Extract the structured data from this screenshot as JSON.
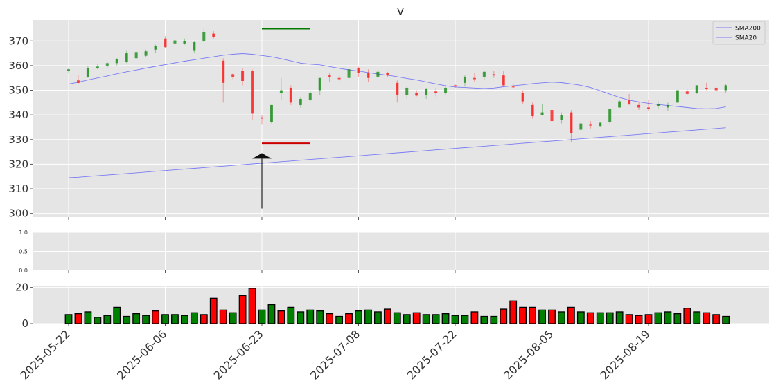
{
  "chart_data": {
    "type": "candlestick",
    "title": "V",
    "dates": [
      "2025-05-22",
      "2025-05-23",
      "2025-05-27",
      "2025-05-28",
      "2025-05-29",
      "2025-05-30",
      "2025-06-02",
      "2025-06-03",
      "2025-06-04",
      "2025-06-05",
      "2025-06-06",
      "2025-06-09",
      "2025-06-10",
      "2025-06-11",
      "2025-06-12",
      "2025-06-13",
      "2025-06-16",
      "2025-06-17",
      "2025-06-18",
      "2025-06-20",
      "2025-06-23",
      "2025-06-24",
      "2025-06-25",
      "2025-06-26",
      "2025-06-27",
      "2025-06-30",
      "2025-07-01",
      "2025-07-02",
      "2025-07-03",
      "2025-07-07",
      "2025-07-08",
      "2025-07-09",
      "2025-07-10",
      "2025-07-11",
      "2025-07-14",
      "2025-07-15",
      "2025-07-16",
      "2025-07-17",
      "2025-07-18",
      "2025-07-21",
      "2025-07-22",
      "2025-07-23",
      "2025-07-24",
      "2025-07-25",
      "2025-07-28",
      "2025-07-29",
      "2025-07-30",
      "2025-07-31",
      "2025-08-01",
      "2025-08-04",
      "2025-08-05",
      "2025-08-06",
      "2025-08-07",
      "2025-08-08",
      "2025-08-11",
      "2025-08-12",
      "2025-08-13",
      "2025-08-14",
      "2025-08-15",
      "2025-08-18",
      "2025-08-19",
      "2025-08-20",
      "2025-08-21",
      "2025-08-22",
      "2025-08-25",
      "2025-08-26",
      "2025-08-27",
      "2025-08-28",
      "2025-08-29"
    ],
    "ohlc": [
      [
        358.0,
        359.0,
        357.2,
        358.5
      ],
      [
        354.0,
        356.0,
        352.5,
        353.0
      ],
      [
        355.5,
        360.0,
        355.0,
        359.0
      ],
      [
        359.0,
        360.5,
        358.5,
        359.6
      ],
      [
        360.0,
        361.5,
        359.0,
        361.0
      ],
      [
        361.0,
        363.0,
        360.0,
        362.5
      ],
      [
        361.5,
        366.0,
        361.0,
        365.0
      ],
      [
        363.0,
        366.0,
        362.5,
        365.5
      ],
      [
        364.0,
        366.5,
        363.5,
        365.8
      ],
      [
        366.5,
        368.5,
        365.0,
        368.0
      ],
      [
        371.0,
        372.0,
        367.0,
        367.5
      ],
      [
        369.0,
        370.8,
        368.5,
        370.2
      ],
      [
        369.0,
        371.0,
        368.5,
        370.0
      ],
      [
        366.0,
        370.0,
        365.0,
        369.5
      ],
      [
        370.0,
        375.0,
        369.5,
        373.5
      ],
      [
        373.0,
        374.0,
        371.0,
        371.5
      ],
      [
        362.0,
        363.0,
        345.0,
        353.0
      ],
      [
        356.5,
        357.0,
        354.5,
        355.5
      ],
      [
        358.0,
        359.0,
        352.0,
        353.8
      ],
      [
        358.0,
        358.5,
        338.0,
        340.5
      ],
      [
        339.0,
        340.0,
        336.0,
        338.5
      ],
      [
        337.0,
        344.0,
        336.5,
        344.0
      ],
      [
        349.0,
        355.0,
        346.0,
        350.0
      ],
      [
        351.0,
        352.0,
        344.0,
        345.0
      ],
      [
        344.0,
        347.0,
        343.0,
        346.5
      ],
      [
        346.0,
        350.0,
        345.5,
        349.0
      ],
      [
        350.0,
        355.0,
        348.0,
        355.0
      ],
      [
        356.0,
        357.0,
        353.5,
        355.5
      ],
      [
        355.0,
        356.0,
        353.5,
        354.5
      ],
      [
        355.0,
        359.0,
        353.5,
        358.5
      ],
      [
        359.0,
        359.5,
        355.5,
        357.0
      ],
      [
        357.0,
        358.5,
        353.5,
        355.0
      ],
      [
        355.5,
        358.0,
        354.5,
        357.5
      ],
      [
        357.0,
        357.5,
        355.5,
        356.0
      ],
      [
        353.0,
        354.0,
        345.0,
        348.0
      ],
      [
        348.0,
        351.5,
        346.5,
        351.0
      ],
      [
        349.0,
        350.0,
        347.5,
        347.8
      ],
      [
        348.0,
        351.0,
        346.5,
        350.5
      ],
      [
        349.5,
        351.0,
        347.5,
        349.0
      ],
      [
        349.0,
        352.0,
        348.0,
        351.0
      ],
      [
        352.0,
        352.5,
        351.0,
        351.5
      ],
      [
        353.0,
        356.0,
        351.5,
        355.5
      ],
      [
        355.0,
        357.0,
        353.5,
        354.5
      ],
      [
        355.5,
        358.0,
        354.0,
        357.5
      ],
      [
        356.5,
        358.0,
        355.0,
        356.0
      ],
      [
        356.0,
        358.0,
        351.5,
        352.0
      ],
      [
        351.5,
        353.0,
        351.0,
        351.2
      ],
      [
        349.0,
        350.0,
        344.5,
        345.5
      ],
      [
        344.0,
        345.0,
        338.5,
        339.5
      ],
      [
        340.0,
        344.5,
        340.0,
        341.0
      ],
      [
        342.0,
        342.5,
        337.0,
        337.5
      ],
      [
        338.0,
        341.0,
        336.5,
        340.0
      ],
      [
        341.0,
        342.0,
        329.0,
        332.5
      ],
      [
        334.0,
        337.0,
        333.5,
        336.5
      ],
      [
        336.0,
        337.5,
        334.5,
        335.8
      ],
      [
        335.5,
        337.0,
        335.0,
        336.8
      ],
      [
        337.0,
        342.5,
        336.5,
        342.5
      ],
      [
        343.0,
        346.0,
        343.0,
        345.5
      ],
      [
        346.0,
        348.5,
        344.0,
        344.5
      ],
      [
        344.0,
        345.5,
        342.0,
        343.0
      ],
      [
        343.0,
        346.0,
        341.5,
        342.5
      ],
      [
        343.5,
        345.5,
        342.5,
        344.5
      ],
      [
        343.0,
        345.0,
        341.5,
        344.0
      ],
      [
        345.0,
        350.0,
        345.0,
        350.0
      ],
      [
        349.5,
        350.5,
        348.0,
        348.5
      ],
      [
        349.0,
        352.0,
        348.5,
        352.0
      ],
      [
        351.0,
        353.0,
        350.0,
        350.5
      ],
      [
        351.0,
        351.5,
        349.5,
        350.0
      ],
      [
        350.0,
        352.5,
        349.0,
        352.0
      ]
    ],
    "sma200": [
      314.5,
      314.7,
      315.0,
      315.3,
      315.6,
      315.9,
      316.2,
      316.5,
      316.8,
      317.1,
      317.4,
      317.7,
      318.0,
      318.3,
      318.6,
      318.9,
      319.2,
      319.5,
      319.8,
      320.1,
      320.4,
      320.7,
      321.0,
      321.3,
      321.6,
      321.9,
      322.2,
      322.5,
      322.8,
      323.1,
      323.4,
      323.7,
      324.0,
      324.3,
      324.6,
      324.9,
      325.2,
      325.5,
      325.8,
      326.1,
      326.4,
      326.7,
      327.0,
      327.3,
      327.6,
      327.9,
      328.2,
      328.5,
      328.8,
      329.1,
      329.4,
      329.7,
      330.0,
      330.3,
      330.6,
      330.9,
      331.2,
      331.5,
      331.8,
      332.1,
      332.4,
      332.7,
      333.0,
      333.3,
      333.6,
      333.9,
      334.2,
      334.5,
      334.8
    ],
    "sma20": [
      352.5,
      353.3,
      354.2,
      355.0,
      355.8,
      356.7,
      357.5,
      358.2,
      359.0,
      359.7,
      360.4,
      361.1,
      361.8,
      362.4,
      363.0,
      363.6,
      364.2,
      364.6,
      364.9,
      364.6,
      364.1,
      363.6,
      362.8,
      361.9,
      361.0,
      360.6,
      360.3,
      359.6,
      358.9,
      358.3,
      357.8,
      357.2,
      356.6,
      356.1,
      355.5,
      354.8,
      354.2,
      353.4,
      352.6,
      351.8,
      351.3,
      351.1,
      350.9,
      350.7,
      350.9,
      351.4,
      351.8,
      352.2,
      352.7,
      353.0,
      353.3,
      353.1,
      352.6,
      352.0,
      351.1,
      349.8,
      348.4,
      347.1,
      346.0,
      345.3,
      344.7,
      344.2,
      343.8,
      343.4,
      343.0,
      342.6,
      342.5,
      342.6,
      343.3
    ],
    "volume": [
      5.0,
      5.5,
      6.5,
      3.5,
      4.5,
      9.0,
      4.0,
      5.5,
      4.5,
      7.0,
      5.0,
      5.0,
      4.5,
      6.0,
      5.0,
      14.0,
      7.5,
      6.0,
      15.5,
      19.5,
      7.5,
      10.5,
      7.0,
      9.0,
      6.5,
      7.5,
      7.0,
      5.5,
      4.0,
      5.5,
      7.0,
      7.5,
      6.5,
      8.0,
      6.0,
      5.0,
      6.0,
      5.0,
      5.0,
      5.5,
      4.5,
      4.5,
      6.5,
      4.0,
      4.0,
      8.0,
      12.5,
      9.0,
      9.0,
      7.5,
      7.5,
      6.5,
      9.0,
      6.5,
      6.0,
      6.0,
      6.0,
      6.5,
      5.0,
      4.5,
      5.0,
      6.0,
      6.5,
      5.5,
      8.5,
      6.5,
      6.0,
      5.0,
      4.0
    ],
    "volume_up": [
      true,
      false,
      true,
      true,
      true,
      true,
      true,
      true,
      true,
      false,
      true,
      true,
      true,
      true,
      false,
      false,
      false,
      true,
      false,
      false,
      true,
      true,
      false,
      true,
      true,
      true,
      true,
      false,
      true,
      false,
      true,
      true,
      true,
      false,
      true,
      true,
      false,
      true,
      true,
      true,
      true,
      true,
      false,
      true,
      true,
      false,
      false,
      false,
      false,
      true,
      false,
      true,
      false,
      true,
      false,
      true,
      true,
      true,
      false,
      false,
      false,
      true,
      true,
      true,
      false,
      true,
      false,
      false,
      true
    ],
    "ylim_price": [
      298.5,
      378.5
    ],
    "yticks_price": [
      300,
      310,
      320,
      330,
      340,
      350,
      360,
      370
    ],
    "ylim_indicator": [
      0.0,
      1.0
    ],
    "yticks_indicator": [
      "0.0",
      "0.5",
      "1.0"
    ],
    "ylim_volume": [
      0,
      21
    ],
    "yticks_volume": [
      0,
      20
    ],
    "xtick_labels": [
      "2025-05-22",
      "2025-06-06",
      "2025-06-23",
      "2025-07-08",
      "2025-07-22",
      "2025-08-05",
      "2025-08-19"
    ],
    "xtick_index": [
      0,
      10,
      20,
      30,
      40,
      50,
      60
    ],
    "legend": [
      "SMA200",
      "SMA20"
    ],
    "legend_position": "top-right",
    "annotation": {
      "index": 20,
      "green_level": 375.0,
      "red_level": 328.5,
      "arrow_tip": 324.5,
      "arrow_base": 302.0,
      "line_span_days": 5
    },
    "grid": true,
    "colors": {
      "up": "#008000",
      "down": "#ff0000",
      "sma200": "#7b7bf5",
      "sma20": "#7b7bf5",
      "panel": "#e5e5e5",
      "grid": "#ffffff",
      "green_line": "#007a00",
      "red_line": "#cc0000",
      "arrow": "#000000"
    }
  }
}
